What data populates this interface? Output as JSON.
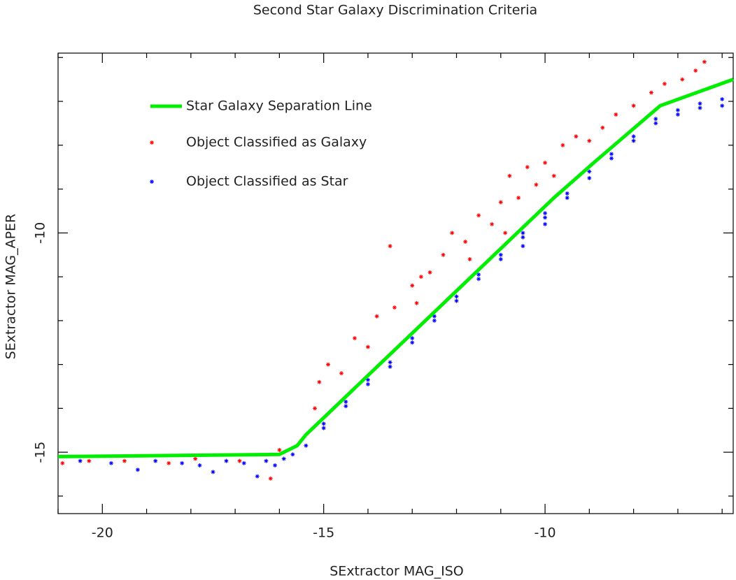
{
  "chart_data": {
    "type": "scatter",
    "title": "Second Star Galaxy Discrimination Criteria",
    "xlabel": "SExtractor MAG_ISO",
    "ylabel": "SExtractor MAG_APER",
    "xlim": [
      -21,
      -5.75
    ],
    "ylim": [
      -16.4,
      -5.9
    ],
    "xticks": [
      -20,
      -15,
      -10
    ],
    "yticks": [
      -10,
      -15
    ],
    "x_minor_ticks": [
      -21,
      -19,
      -18,
      -17,
      -16,
      -14,
      -13,
      -12,
      -11,
      -9,
      -8,
      -7,
      -6
    ],
    "y_minor_ticks": [
      -16,
      -14,
      -13,
      -12,
      -11,
      -9,
      -8,
      -7,
      -6
    ],
    "legend": "upper left",
    "series": [
      {
        "name": "Star Galaxy Separation Line",
        "type": "line",
        "color": "#00ee00",
        "x": [
          -21,
          -16,
          -15.6,
          -15.4,
          -9.8,
          -8.9,
          -7.4,
          -5.75
        ],
        "values": [
          -15.1,
          -15.05,
          -14.85,
          -14.6,
          -9.2,
          -8.4,
          -7.1,
          -6.5
        ]
      },
      {
        "name": "Object Classified as Galaxy",
        "type": "scatter",
        "color": "#ff0000",
        "x": [
          -20.9,
          -20.3,
          -19.5,
          -18.5,
          -17.9,
          -16.9,
          -16.2,
          -16.0,
          -15.2,
          -15.1,
          -14.9,
          -14.6,
          -14.3,
          -14.0,
          -13.8,
          -13.5,
          -13.4,
          -13.0,
          -12.8,
          -12.6,
          -12.3,
          -12.1,
          -11.8,
          -11.5,
          -11.2,
          -11.0,
          -10.8,
          -10.6,
          -10.4,
          -10.2,
          -10.0,
          -9.8,
          -9.6,
          -9.3,
          -9.0,
          -8.7,
          -8.4,
          -8.0,
          -7.6,
          -7.3,
          -6.9,
          -6.6,
          -6.4,
          -12.9,
          -11.7,
          -10.9
        ],
        "values": [
          -15.25,
          -15.2,
          -15.2,
          -15.25,
          -15.15,
          -15.2,
          -15.6,
          -14.95,
          -14.0,
          -13.4,
          -13.0,
          -13.2,
          -12.4,
          -12.6,
          -11.9,
          -10.3,
          -11.7,
          -11.2,
          -11.0,
          -10.9,
          -10.5,
          -10.0,
          -10.2,
          -9.6,
          -9.8,
          -9.3,
          -8.7,
          -9.2,
          -8.5,
          -8.9,
          -8.4,
          -8.7,
          -8.0,
          -7.8,
          -7.9,
          -7.6,
          -7.3,
          -7.1,
          -6.8,
          -6.6,
          -6.5,
          -6.3,
          -6.1,
          -11.6,
          -10.6,
          -10.0
        ]
      },
      {
        "name": "Object Classified as Star",
        "type": "scatter",
        "color": "#0000ff",
        "x": [
          -20.5,
          -19.8,
          -19.2,
          -18.8,
          -18.2,
          -17.8,
          -17.5,
          -17.2,
          -16.8,
          -16.5,
          -16.3,
          -16.1,
          -15.9,
          -15.7,
          -15.4,
          -15.0,
          -15.0,
          -14.5,
          -14.5,
          -14.0,
          -14.0,
          -13.5,
          -13.5,
          -13.0,
          -13.0,
          -12.5,
          -12.5,
          -12.0,
          -12.0,
          -11.5,
          -11.5,
          -11.0,
          -11.0,
          -10.5,
          -10.5,
          -10.5,
          -10.0,
          -10.0,
          -10.0,
          -9.5,
          -9.5,
          -9.0,
          -9.0,
          -8.5,
          -8.5,
          -8.0,
          -8.0,
          -7.5,
          -7.5,
          -7.0,
          -7.0,
          -6.5,
          -6.5,
          -6.0,
          -6.0
        ],
        "values": [
          -15.2,
          -15.25,
          -15.4,
          -15.2,
          -15.25,
          -15.3,
          -15.45,
          -15.2,
          -15.25,
          -15.55,
          -15.2,
          -15.3,
          -15.15,
          -15.05,
          -14.85,
          -14.45,
          -14.35,
          -13.95,
          -13.85,
          -13.45,
          -13.35,
          -12.95,
          -13.05,
          -12.5,
          -12.4,
          -12.0,
          -11.9,
          -11.55,
          -11.45,
          -11.05,
          -10.95,
          -10.6,
          -10.5,
          -10.1,
          -10.0,
          -10.3,
          -9.65,
          -9.55,
          -9.8,
          -9.2,
          -9.1,
          -8.75,
          -8.6,
          -8.3,
          -8.2,
          -7.9,
          -7.8,
          -7.5,
          -7.4,
          -7.2,
          -7.3,
          -7.05,
          -7.15,
          -6.95,
          -7.1
        ]
      }
    ]
  }
}
